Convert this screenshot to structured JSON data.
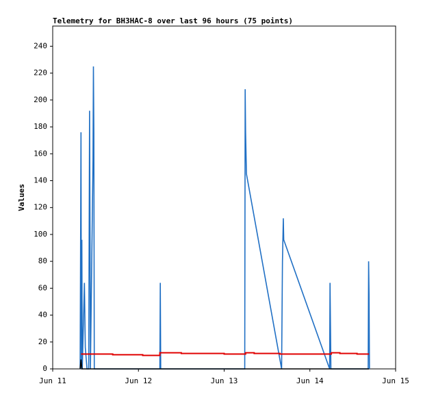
{
  "chart_data": {
    "type": "line",
    "title": "Telemetry for BH3HAC-8 over last 96 hours (75 points)",
    "y_label": "Values",
    "xlim": [
      11,
      15
    ],
    "xticks": [
      {
        "value": 11,
        "label": "Jun 11"
      },
      {
        "value": 12,
        "label": "Jun 12"
      },
      {
        "value": 13,
        "label": "Jun 13"
      },
      {
        "value": 14,
        "label": "Jun 14"
      },
      {
        "value": 15,
        "label": "Jun 15"
      }
    ],
    "ylim": [
      0,
      255
    ],
    "yticks": [
      0,
      20,
      40,
      60,
      80,
      100,
      120,
      140,
      160,
      180,
      200,
      220,
      240
    ],
    "grid": false,
    "series": [
      {
        "color": "#1f6fc4",
        "x": [
          11.32,
          11.325,
          11.33,
          11.335,
          11.34,
          11.345,
          11.37,
          11.38,
          11.4,
          11.42,
          11.43,
          11.435,
          11.44,
          11.47,
          11.475,
          11.48,
          11.485,
          12.25,
          12.255,
          12.26,
          13.24,
          13.245,
          13.25,
          13.26,
          13.67,
          13.68,
          13.69,
          13.695,
          14.23,
          14.235,
          14.24,
          14.245,
          14.68,
          14.685,
          14.69,
          14.695
        ],
        "values": [
          0,
          88,
          176,
          0,
          96,
          0,
          64,
          16,
          0,
          0,
          192,
          112,
          0,
          155,
          225,
          176,
          0,
          0,
          64,
          0,
          0,
          208,
          176,
          145,
          0,
          80,
          112,
          96,
          0,
          64,
          32,
          0,
          0,
          80,
          56,
          0
        ]
      },
      {
        "color": "#e00000",
        "x": [
          11.33,
          11.7,
          11.7,
          12.05,
          12.05,
          12.25,
          12.25,
          12.5,
          12.5,
          13.0,
          13.0,
          13.25,
          13.25,
          13.35,
          13.35,
          13.65,
          13.65,
          14.25,
          14.25,
          14.35,
          14.35,
          14.55,
          14.55,
          14.69
        ],
        "values": [
          11,
          11,
          10.5,
          10.5,
          10,
          10,
          12,
          12,
          11.5,
          11.5,
          11,
          11,
          12,
          12,
          11.5,
          11.5,
          11,
          11,
          12,
          12,
          11.5,
          11.5,
          11,
          11
        ]
      },
      {
        "color": "#000000",
        "x": [
          11.32,
          11.33,
          11.34,
          14.69
        ],
        "values": [
          0,
          7,
          0,
          0
        ]
      }
    ]
  }
}
